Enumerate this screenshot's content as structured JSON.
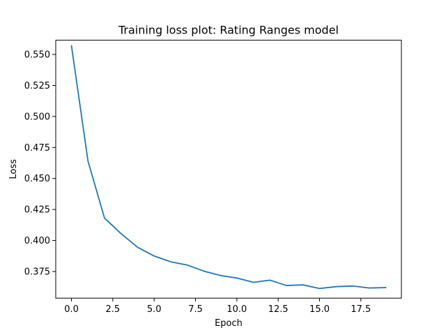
{
  "chart_data": {
    "type": "line",
    "title": "Training loss plot: Rating Ranges model",
    "xlabel": "Epoch",
    "ylabel": "Loss",
    "xlim": [
      -0.95,
      19.95
    ],
    "ylim": [
      0.3535,
      0.5615
    ],
    "xticks": [
      0.0,
      2.5,
      5.0,
      7.5,
      10.0,
      12.5,
      15.0,
      17.5
    ],
    "xtick_labels": [
      "0.0",
      "2.5",
      "5.0",
      "7.5",
      "10.0",
      "12.5",
      "15.0",
      "17.5"
    ],
    "yticks": [
      0.375,
      0.4,
      0.425,
      0.45,
      0.475,
      0.5,
      0.525,
      0.55
    ],
    "ytick_labels": [
      "0.375",
      "0.400",
      "0.425",
      "0.450",
      "0.475",
      "0.500",
      "0.525",
      "0.550"
    ],
    "grid": false,
    "series": [
      {
        "color": "#1f77b4",
        "x": [
          0,
          1,
          2,
          3,
          4,
          5,
          6,
          7,
          8,
          9,
          10,
          11,
          12,
          13,
          14,
          15,
          16,
          17,
          18,
          19
        ],
        "y": [
          0.557,
          0.464,
          0.418,
          0.4055,
          0.3945,
          0.3875,
          0.3828,
          0.3802,
          0.3753,
          0.3718,
          0.3697,
          0.3663,
          0.368,
          0.3637,
          0.3642,
          0.3613,
          0.3628,
          0.3633,
          0.3617,
          0.362
        ]
      }
    ]
  }
}
